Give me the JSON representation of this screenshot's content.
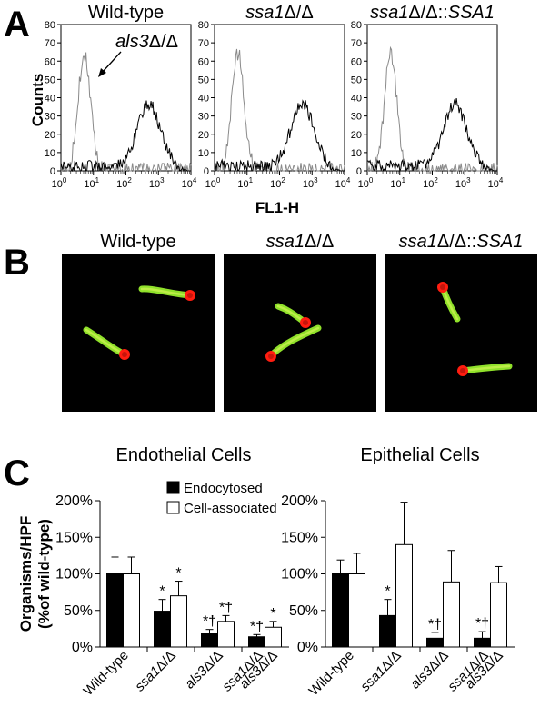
{
  "panel_labels": {
    "A": "A",
    "B": "B",
    "C": "C"
  },
  "histograms": {
    "titles": [
      {
        "parts": [
          {
            "t": "Wild-type",
            "i": false
          }
        ]
      },
      {
        "parts": [
          {
            "t": "ssa1",
            "i": true
          },
          {
            "t": "Δ/Δ",
            "i": false
          }
        ]
      },
      {
        "parts": [
          {
            "t": "ssa1",
            "i": true
          },
          {
            "t": "Δ/Δ::",
            "i": false
          },
          {
            "t": "SSA1",
            "i": true
          }
        ]
      }
    ],
    "annotation": {
      "parts": [
        {
          "t": "als3",
          "i": true
        },
        {
          "t": "Δ/Δ",
          "i": false
        }
      ]
    },
    "ylabel": "Counts",
    "xlabel": "FL1-H",
    "y_ticks": [
      "0",
      "10",
      "20",
      "30",
      "40",
      "50",
      "60",
      "70",
      "80"
    ],
    "x_ticks": [
      {
        "b": "10",
        "e": "0"
      },
      {
        "b": "10",
        "e": "1"
      },
      {
        "b": "10",
        "e": "2"
      },
      {
        "b": "10",
        "e": "3"
      },
      {
        "b": "10",
        "e": "4"
      }
    ]
  },
  "microscopy": {
    "titles": [
      {
        "parts": [
          {
            "t": "Wild-type",
            "i": false
          }
        ]
      },
      {
        "parts": [
          {
            "t": "ssa1",
            "i": true
          },
          {
            "t": "Δ/Δ",
            "i": false
          }
        ]
      },
      {
        "parts": [
          {
            "t": "ssa1",
            "i": true
          },
          {
            "t": "Δ/Δ::",
            "i": false
          },
          {
            "t": "SSA1",
            "i": true
          }
        ]
      }
    ],
    "colors": {
      "hypha": "#8fe02a",
      "hypha_core": "#c8f050",
      "tip": "#ff1d10",
      "background": "#000000"
    }
  },
  "bar_legend": [
    "Endocytosed",
    "Cell-associated"
  ],
  "colors": {
    "endocytosed": "#000000",
    "cell_associated": "#ffffff"
  },
  "chart_data": [
    {
      "type": "bar",
      "title": "Endothelial Cells",
      "ylabel": [
        "Organisms/HPF",
        "(%of wild-type)"
      ],
      "ylim": [
        0,
        200
      ],
      "y_ticks": [
        "0%",
        "50%",
        "100%",
        "150%",
        "200%"
      ],
      "categories": [
        [
          {
            "t": "Wild-type",
            "i": false
          }
        ],
        [
          {
            "t": "ssa1",
            "i": true
          },
          {
            "t": "Δ/Δ",
            "i": false
          }
        ],
        [
          {
            "t": "als3",
            "i": true
          },
          {
            "t": "Δ/Δ",
            "i": false
          }
        ],
        [
          {
            "t": "ssa1",
            "i": true
          },
          {
            "t": "Δ/Δ",
            "i": false
          },
          {
            "t": "|",
            "i": false
          },
          {
            "t": "als3",
            "i": true
          },
          {
            "t": "Δ/Δ",
            "i": false
          }
        ]
      ],
      "series": [
        {
          "name": "Endocytosed",
          "values": [
            100,
            49,
            18,
            14
          ],
          "errors": [
            23,
            16,
            6,
            3
          ],
          "marks": [
            "",
            "*",
            "*†",
            "*†"
          ]
        },
        {
          "name": "Cell-associated",
          "values": [
            100,
            70,
            35,
            27
          ],
          "errors": [
            23,
            20,
            8,
            8
          ],
          "marks": [
            "",
            "*",
            "*†",
            "*"
          ]
        }
      ]
    },
    {
      "type": "bar",
      "title": "Epithelial Cells",
      "ylim": [
        0,
        200
      ],
      "y_ticks": [
        "0%",
        "50%",
        "100%",
        "150%",
        "200%"
      ],
      "categories": [
        [
          {
            "t": "Wild-type",
            "i": false
          }
        ],
        [
          {
            "t": "ssa1",
            "i": true
          },
          {
            "t": "Δ/Δ",
            "i": false
          }
        ],
        [
          {
            "t": "als3",
            "i": true
          },
          {
            "t": "Δ/Δ",
            "i": false
          }
        ],
        [
          {
            "t": "ssa1",
            "i": true
          },
          {
            "t": "Δ/Δ",
            "i": false
          },
          {
            "t": "|",
            "i": false
          },
          {
            "t": "als3",
            "i": true
          },
          {
            "t": "Δ/Δ",
            "i": false
          }
        ]
      ],
      "series": [
        {
          "name": "Endocytosed",
          "values": [
            100,
            43,
            12,
            12
          ],
          "errors": [
            19,
            22,
            8,
            9
          ],
          "marks": [
            "",
            "*",
            "*†",
            "*†"
          ]
        },
        {
          "name": "Cell-associated",
          "values": [
            100,
            140,
            89,
            88
          ],
          "errors": [
            28,
            58,
            43,
            22
          ],
          "marks": [
            "",
            "",
            "",
            ""
          ]
        }
      ]
    }
  ]
}
